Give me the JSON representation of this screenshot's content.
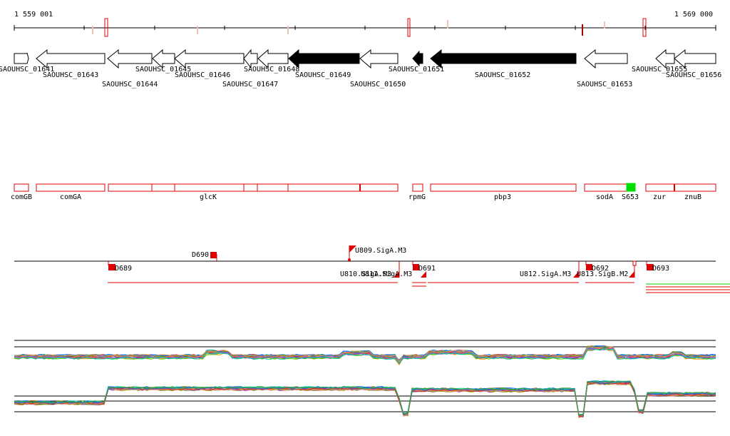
{
  "ruler": {
    "start_label": "1 559 001",
    "end_label": "1 569 000"
  },
  "genes": [
    {
      "label": "SAOUHSC_01641",
      "dir": "right",
      "filled": false
    },
    {
      "label": "SAOUHSC_01643",
      "dir": "left",
      "filled": false
    },
    {
      "label": "SAOUHSC_01644",
      "dir": "left",
      "filled": false
    },
    {
      "label": "SAOUHSC_01645",
      "dir": "left",
      "filled": false
    },
    {
      "label": "SAOUHSC_01646",
      "dir": "left",
      "filled": false
    },
    {
      "label": "SAOUHSC_01647",
      "dir": "left",
      "filled": false
    },
    {
      "label": "SAOUHSC_01648",
      "dir": "left",
      "filled": false
    },
    {
      "label": "SAOUHSC_01649",
      "dir": "left",
      "filled": true
    },
    {
      "label": "SAOUHSC_01650",
      "dir": "left",
      "filled": false
    },
    {
      "label": "SAOUHSC_01651",
      "dir": "left",
      "filled": true
    },
    {
      "label": "SAOUHSC_01652",
      "dir": "left",
      "filled": true
    },
    {
      "label": "SAOUHSC_01653",
      "dir": "left",
      "filled": false
    },
    {
      "label": "SAOUHSC_01655",
      "dir": "left",
      "filled": false
    },
    {
      "label": "SAOUHSC_01656",
      "dir": "left",
      "filled": false
    }
  ],
  "gene_names": [
    {
      "label": "comGB"
    },
    {
      "label": "comGA"
    },
    {
      "label": "glcK"
    },
    {
      "label": "rpmG"
    },
    {
      "label": "pbp3"
    },
    {
      "label": "sodA"
    },
    {
      "label": "S653"
    },
    {
      "label": "zur"
    },
    {
      "label": "znuB"
    }
  ],
  "features": [
    {
      "label": "D690"
    },
    {
      "label": "U809.SigA.M3"
    },
    {
      "label": "D689"
    },
    {
      "label": "U810.SigA.M3"
    },
    {
      "label": "U811.SigA.M3"
    },
    {
      "label": "D691"
    },
    {
      "label": "U812.SigA.M3"
    },
    {
      "label": "D692"
    },
    {
      "label": "U813.SigB.M2"
    },
    {
      "label": "D693"
    }
  ],
  "colors": {
    "accent": "#dd0000",
    "green": "#00dd00",
    "gene_fill": "#000000"
  }
}
